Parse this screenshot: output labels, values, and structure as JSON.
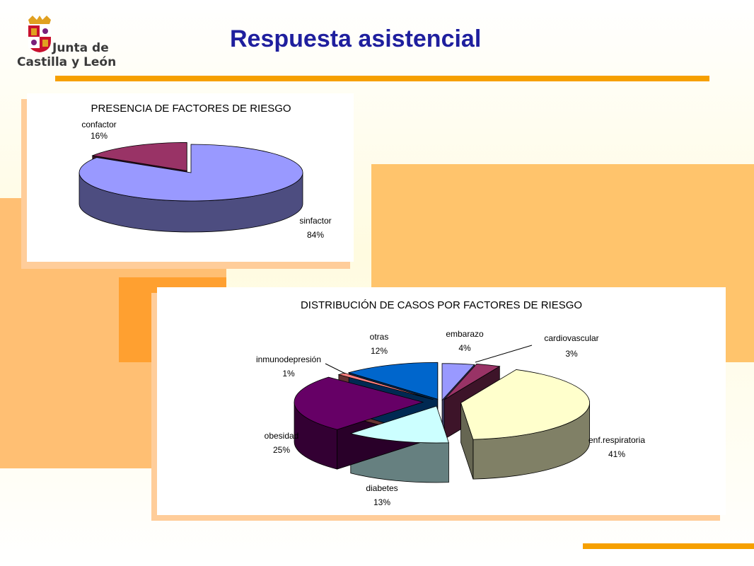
{
  "header": {
    "title": "Respuesta asistencial",
    "logo_line1": "Junta de",
    "logo_line2": "Castilla y León"
  },
  "colors": {
    "title": "#1f1f9e",
    "accent_rule": "#f6a000",
    "bg_orange_light": "#ffc46c",
    "bg_orange_dark": "#ffa030"
  },
  "chart_data": [
    {
      "type": "pie",
      "style": "3d",
      "title": "PRESENCIA DE FACTORES DE RIESGO",
      "slices": [
        {
          "label": "confactor",
          "value": 16,
          "display": "16%",
          "color": "#993366"
        },
        {
          "label": "sinfactor",
          "value": 84,
          "display": "84%",
          "color": "#9999ff"
        }
      ]
    },
    {
      "type": "pie",
      "style": "3d",
      "title": "DISTRIBUCIÓN DE CASOS POR FACTORES DE RIESGO",
      "slices": [
        {
          "label": "embarazo",
          "value": 4,
          "display": "4%",
          "color": "#9999ff"
        },
        {
          "label": "cardiovascular",
          "value": 3,
          "display": "3%",
          "color": "#993366"
        },
        {
          "label": "enf.respiratoria",
          "value": 41,
          "display": "41%",
          "color": "#ffffcc"
        },
        {
          "label": "diabetes",
          "value": 13,
          "display": "13%",
          "color": "#ccffff"
        },
        {
          "label": "obesidad",
          "value": 25,
          "display": "25%",
          "color": "#660066"
        },
        {
          "label": "inmunodepresión",
          "value": 1,
          "display": "1%",
          "color": "#ff8080"
        },
        {
          "label": "otras",
          "value": 12,
          "display": "12%",
          "color": "#0066cc"
        }
      ]
    }
  ]
}
